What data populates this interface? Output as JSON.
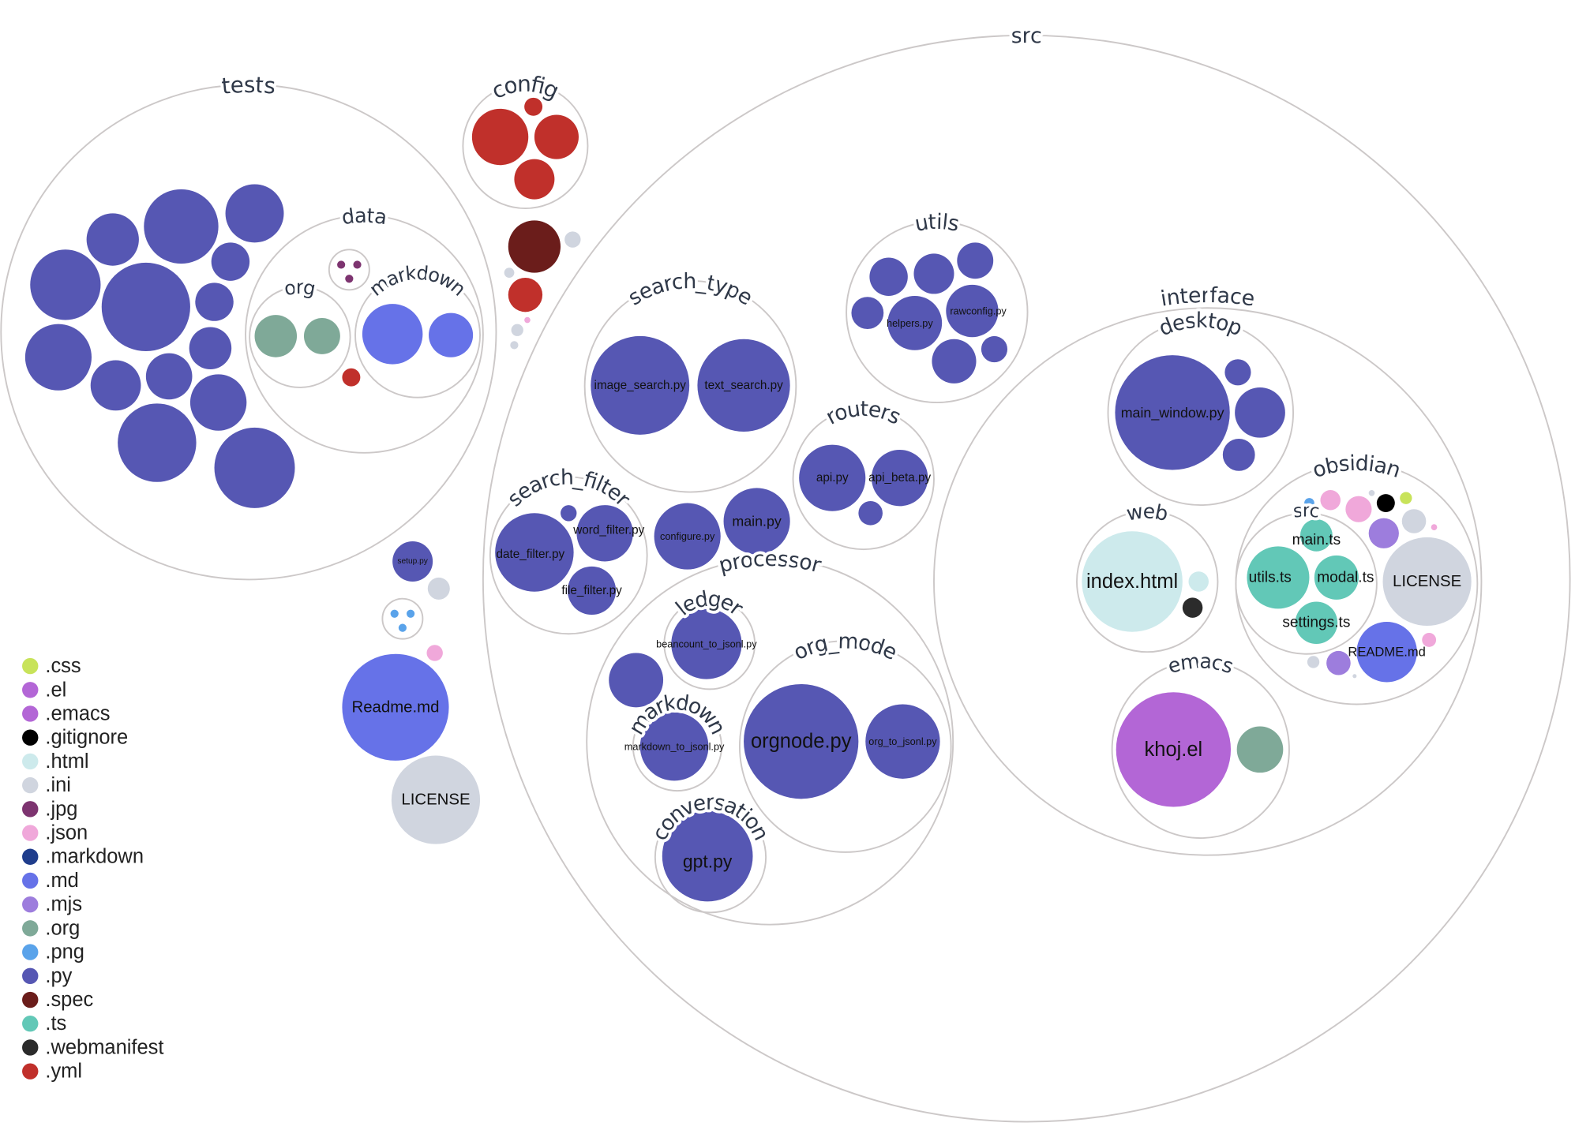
{
  "chart_data": {
    "type": "circle-packing",
    "directories": [
      {
        "name": "src"
      },
      {
        "name": "tests"
      },
      {
        "name": "data"
      },
      {
        "name": "org"
      },
      {
        "name": "markdown"
      },
      {
        "name": ""
      },
      {
        "name": "config"
      },
      {
        "name": ""
      },
      {
        "name": "search_type"
      },
      {
        "name": "utils"
      },
      {
        "name": "routers"
      },
      {
        "name": "search_filter"
      },
      {
        "name": "processor"
      },
      {
        "name": "ledger"
      },
      {
        "name": "markdown"
      },
      {
        "name": "org_mode"
      },
      {
        "name": "conversation"
      },
      {
        "name": "interface"
      },
      {
        "name": "desktop"
      },
      {
        "name": "web"
      },
      {
        "name": "obsidian"
      },
      {
        "name": "src"
      },
      {
        "name": "emacs"
      }
    ],
    "files": [
      {
        "label": "",
        "ext": ".py"
      },
      {
        "label": "",
        "ext": ".py"
      },
      {
        "label": "",
        "ext": ".py"
      },
      {
        "label": "",
        "ext": ".py"
      },
      {
        "label": "",
        "ext": ".py"
      },
      {
        "label": "",
        "ext": ".py"
      },
      {
        "label": "",
        "ext": ".py"
      },
      {
        "label": "",
        "ext": ".py"
      },
      {
        "label": "",
        "ext": ".py"
      },
      {
        "label": "",
        "ext": ".py"
      },
      {
        "label": "",
        "ext": ".py"
      },
      {
        "label": "",
        "ext": ".py"
      },
      {
        "label": "",
        "ext": ".py"
      },
      {
        "label": "",
        "ext": ".py"
      },
      {
        "label": "",
        "ext": ".org"
      },
      {
        "label": "",
        "ext": ".org"
      },
      {
        "label": "",
        "ext": ".md"
      },
      {
        "label": "",
        "ext": ".md"
      },
      {
        "label": "",
        "ext": ".jpg"
      },
      {
        "label": "",
        "ext": ".jpg"
      },
      {
        "label": "",
        "ext": ".jpg"
      },
      {
        "label": "",
        "ext": ".yml"
      },
      {
        "label": "",
        "ext": ".yml"
      },
      {
        "label": "",
        "ext": ".yml"
      },
      {
        "label": "",
        "ext": ".yml"
      },
      {
        "label": "",
        "ext": ".yml"
      },
      {
        "label": "",
        "ext": ".spec"
      },
      {
        "label": "",
        "ext": ".ini"
      },
      {
        "label": "",
        "ext": ".yml"
      },
      {
        "label": "",
        "ext": ".ini"
      },
      {
        "label": "",
        "ext": ".ini"
      },
      {
        "label": "",
        "ext": ".ini"
      },
      {
        "label": "",
        "ext": ".json"
      },
      {
        "label": "setup.py",
        "ext": ".py"
      },
      {
        "label": "",
        "ext": ".ini"
      },
      {
        "label": "",
        "ext": ".png"
      },
      {
        "label": "",
        "ext": ".png"
      },
      {
        "label": "",
        "ext": ".png"
      },
      {
        "label": "",
        "ext": ".json"
      },
      {
        "label": "Readme.md",
        "ext": ".md"
      },
      {
        "label": "LICENSE",
        "ext": ".ini"
      },
      {
        "label": "image_search.py",
        "ext": ".py"
      },
      {
        "label": "text_search.py",
        "ext": ".py"
      },
      {
        "label": "",
        "ext": ".py"
      },
      {
        "label": "",
        "ext": ".py"
      },
      {
        "label": "",
        "ext": ".py"
      },
      {
        "label": "",
        "ext": ".py"
      },
      {
        "label": "helpers.py",
        "ext": ".py"
      },
      {
        "label": "rawconfig.py",
        "ext": ".py"
      },
      {
        "label": "",
        "ext": ".py"
      },
      {
        "label": "",
        "ext": ".py"
      },
      {
        "label": "api.py",
        "ext": ".py"
      },
      {
        "label": "api_beta.py",
        "ext": ".py"
      },
      {
        "label": "",
        "ext": ".py"
      },
      {
        "label": "",
        "ext": ".py"
      },
      {
        "label": "date_filter.py",
        "ext": ".py"
      },
      {
        "label": "word_filter.py",
        "ext": ".py"
      },
      {
        "label": "file_filter.py",
        "ext": ".py"
      },
      {
        "label": "configure.py",
        "ext": ".py"
      },
      {
        "label": "main.py",
        "ext": ".py"
      },
      {
        "label": "beancount_to_jsonl.py",
        "ext": ".py"
      },
      {
        "label": "",
        "ext": ".py"
      },
      {
        "label": "markdown_to_jsonl.py",
        "ext": ".py"
      },
      {
        "label": "orgnode.py",
        "ext": ".py"
      },
      {
        "label": "org_to_jsonl.py",
        "ext": ".py"
      },
      {
        "label": "gpt.py",
        "ext": ".py"
      },
      {
        "label": "main_window.py",
        "ext": ".py"
      },
      {
        "label": "",
        "ext": ".py"
      },
      {
        "label": "",
        "ext": ".py"
      },
      {
        "label": "",
        "ext": ".py"
      },
      {
        "label": "index.html",
        "ext": ".html"
      },
      {
        "label": "",
        "ext": ".html"
      },
      {
        "label": "",
        "ext": ".webmanifest"
      },
      {
        "label": "",
        "ext": ".png"
      },
      {
        "label": "",
        "ext": ".json"
      },
      {
        "label": "",
        "ext": ".json"
      },
      {
        "label": "",
        "ext": ".ini"
      },
      {
        "label": "",
        "ext": ".gitignore"
      },
      {
        "label": "",
        "ext": ".css"
      },
      {
        "label": "",
        "ext": ".mjs"
      },
      {
        "label": "",
        "ext": ".ini"
      },
      {
        "label": "",
        "ext": ".json"
      },
      {
        "label": "LICENSE",
        "ext": ".ini"
      },
      {
        "label": "README.md",
        "ext": ".md"
      },
      {
        "label": "",
        "ext": ".json"
      },
      {
        "label": "",
        "ext": ".ini"
      },
      {
        "label": "",
        "ext": ".mjs"
      },
      {
        "label": "",
        "ext": ".ini"
      },
      {
        "label": "main.ts",
        "ext": ".ts"
      },
      {
        "label": "utils.ts",
        "ext": ".ts"
      },
      {
        "label": "modal.ts",
        "ext": ".ts"
      },
      {
        "label": "settings.ts",
        "ext": ".ts"
      },
      {
        "label": "khoj.el",
        "ext": ".el"
      },
      {
        "label": "",
        "ext": ".org"
      }
    ],
    "legend": [
      {
        "ext": ".css",
        "color": "#c8e35a"
      },
      {
        "ext": ".el",
        "color": "#b366d6"
      },
      {
        "ext": ".emacs",
        "color": "#b366d6"
      },
      {
        "ext": ".gitignore",
        "color": "#000000"
      },
      {
        "ext": ".html",
        "color": "#cdeaec"
      },
      {
        "ext": ".ini",
        "color": "#d0d5df"
      },
      {
        "ext": ".jpg",
        "color": "#7d3470"
      },
      {
        "ext": ".json",
        "color": "#f0a8da"
      },
      {
        "ext": ".markdown",
        "color": "#1f3d8c"
      },
      {
        "ext": ".md",
        "color": "#6672e8"
      },
      {
        "ext": ".mjs",
        "color": "#9d7ddd"
      },
      {
        "ext": ".org",
        "color": "#7fa998"
      },
      {
        "ext": ".png",
        "color": "#5aa3ea"
      },
      {
        "ext": ".py",
        "color": "#5657b3"
      },
      {
        "ext": ".spec",
        "color": "#6b1d1b"
      },
      {
        "ext": ".ts",
        "color": "#62c8b7"
      },
      {
        "ext": ".webmanifest",
        "color": "#2b2b2b"
      },
      {
        "ext": ".yml",
        "color": "#c0302b"
      }
    ],
    "legend_placement": "bottom-left"
  }
}
